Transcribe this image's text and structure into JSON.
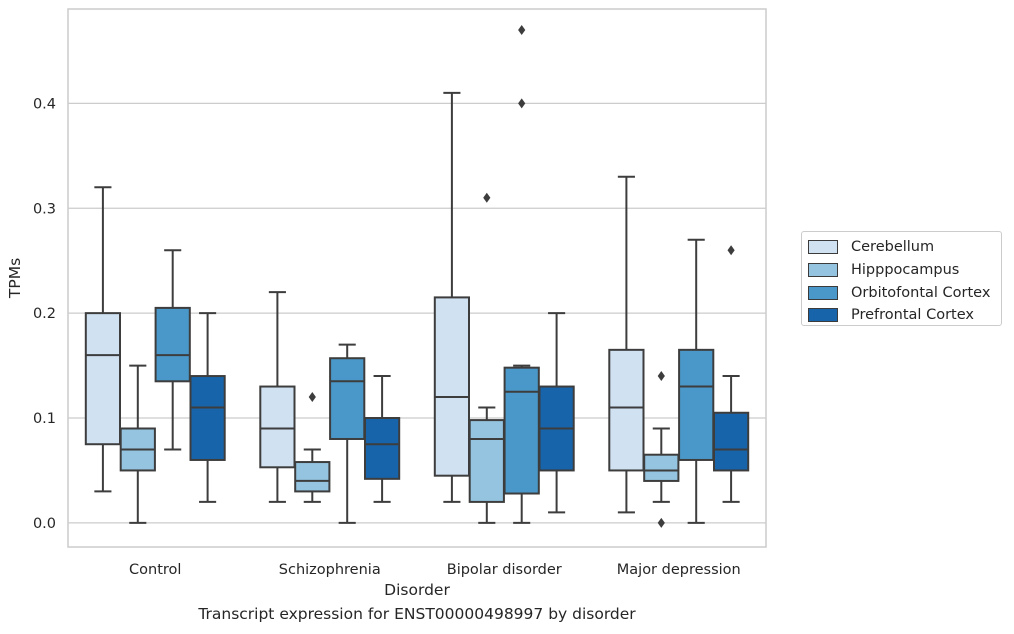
{
  "chart_data": {
    "type": "box",
    "categories": [
      "Control",
      "Schizophrenia",
      "Bipolar disorder",
      "Major depression"
    ],
    "xlabel": "Disorder",
    "ylabel": "TPMs",
    "ylim": [
      -0.023,
      0.49
    ],
    "yticks": [
      0.0,
      0.1,
      0.2,
      0.3,
      0.4
    ],
    "ytick_labels": [
      "0.0",
      "0.1",
      "0.2",
      "0.3",
      "0.4"
    ],
    "grid": "horizontal",
    "legend_position": "right",
    "series": [
      {
        "name": "Cerebellum",
        "color": "#d0e1f2",
        "boxes": [
          {
            "whislo": 0.03,
            "q1": 0.075,
            "med": 0.16,
            "q3": 0.2,
            "whishi": 0.32,
            "fliers": []
          },
          {
            "whislo": 0.02,
            "q1": 0.053,
            "med": 0.09,
            "q3": 0.13,
            "whishi": 0.22,
            "fliers": []
          },
          {
            "whislo": 0.02,
            "q1": 0.045,
            "med": 0.12,
            "q3": 0.215,
            "whishi": 0.41,
            "fliers": []
          },
          {
            "whislo": 0.01,
            "q1": 0.05,
            "med": 0.11,
            "q3": 0.165,
            "whishi": 0.33,
            "fliers": []
          }
        ]
      },
      {
        "name": "Hipppocampus",
        "color": "#94c4df",
        "boxes": [
          {
            "whislo": 0.0,
            "q1": 0.05,
            "med": 0.07,
            "q3": 0.09,
            "whishi": 0.15,
            "fliers": []
          },
          {
            "whislo": 0.02,
            "q1": 0.03,
            "med": 0.04,
            "q3": 0.058,
            "whishi": 0.07,
            "fliers": [
              0.12
            ]
          },
          {
            "whislo": 0.0,
            "q1": 0.02,
            "med": 0.08,
            "q3": 0.098,
            "whishi": 0.11,
            "fliers": [
              0.31
            ]
          },
          {
            "whislo": 0.02,
            "q1": 0.04,
            "med": 0.05,
            "q3": 0.065,
            "whishi": 0.09,
            "fliers": [
              0.14,
              0.0
            ]
          }
        ]
      },
      {
        "name": "Orbitofontal Cortex",
        "color": "#4a98c9",
        "boxes": [
          {
            "whislo": 0.07,
            "q1": 0.135,
            "med": 0.16,
            "q3": 0.205,
            "whishi": 0.26,
            "fliers": []
          },
          {
            "whislo": 0.0,
            "q1": 0.08,
            "med": 0.135,
            "q3": 0.157,
            "whishi": 0.17,
            "fliers": []
          },
          {
            "whislo": 0.0,
            "q1": 0.028,
            "med": 0.125,
            "q3": 0.148,
            "whishi": 0.15,
            "fliers": [
              0.4,
              0.47
            ]
          },
          {
            "whislo": 0.0,
            "q1": 0.06,
            "med": 0.13,
            "q3": 0.165,
            "whishi": 0.27,
            "fliers": []
          }
        ]
      },
      {
        "name": "Prefrontal Cortex",
        "color": "#1764ab",
        "boxes": [
          {
            "whislo": 0.02,
            "q1": 0.06,
            "med": 0.11,
            "q3": 0.14,
            "whishi": 0.2,
            "fliers": []
          },
          {
            "whislo": 0.02,
            "q1": 0.042,
            "med": 0.075,
            "q3": 0.1,
            "whishi": 0.14,
            "fliers": []
          },
          {
            "whislo": 0.01,
            "q1": 0.05,
            "med": 0.09,
            "q3": 0.13,
            "whishi": 0.2,
            "fliers": []
          },
          {
            "whislo": 0.02,
            "q1": 0.05,
            "med": 0.07,
            "q3": 0.105,
            "whishi": 0.14,
            "fliers": [
              0.26
            ]
          }
        ]
      }
    ]
  },
  "caption": "Transcript expression for ENST00000498997 by disorder"
}
